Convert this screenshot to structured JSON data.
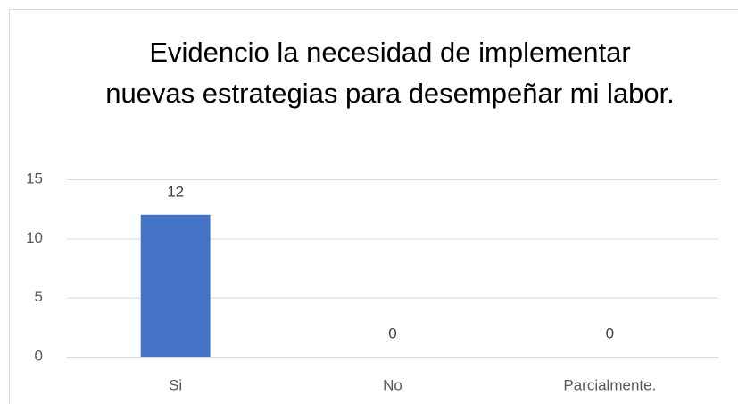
{
  "chart_data": {
    "type": "bar",
    "title": "Evidencio la necesidad de implementar nuevas estrategias para desempeñar mi labor.",
    "categories": [
      "Si",
      "No",
      "Parcialmente."
    ],
    "values": [
      12,
      0,
      0
    ],
    "color": "#4472c4",
    "ylim": [
      0,
      15
    ],
    "yticks": [
      0,
      5,
      10,
      15
    ],
    "grid": true
  }
}
